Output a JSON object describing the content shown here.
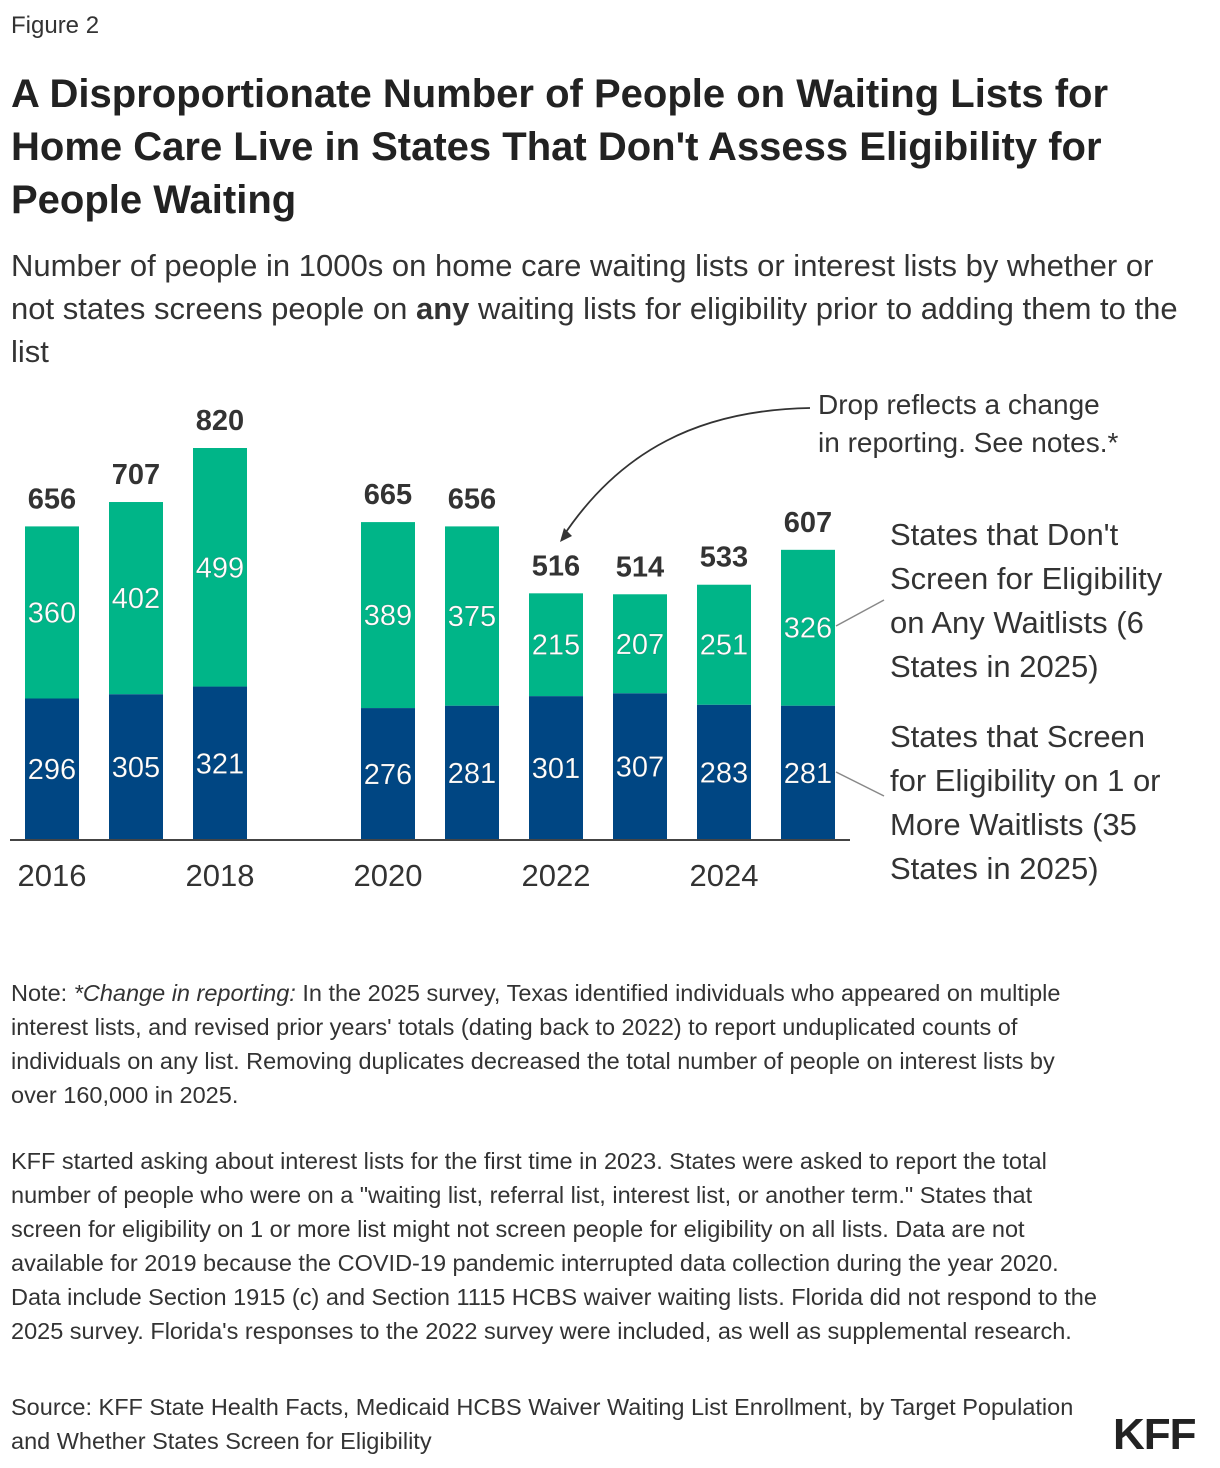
{
  "figure_label": "Figure 2",
  "title": "A Disproportionate Number of People on Waiting Lists for Home Care Live in States That Don't Assess Eligibility for People Waiting",
  "subtitle_pre": "Number of people in 1000s on home care waiting lists or interest lists by whether or not states screens people on ",
  "subtitle_bold": "any",
  "subtitle_post": " waiting lists for eligibility prior to adding them to the list",
  "chart_data": {
    "type": "bar",
    "stacked": true,
    "categories": [
      "2016",
      "2017",
      "2018",
      "2019",
      "2020",
      "2021",
      "2022",
      "2023",
      "2024",
      "2025"
    ],
    "tick_labels": [
      "2016",
      "2018",
      "2020",
      "2022",
      "2024"
    ],
    "series": [
      {
        "name": "States that Screen for Eligibility on 1 or More Waitlists (35 States in 2025)",
        "color": "#004683",
        "values": [
          296,
          305,
          321,
          null,
          276,
          281,
          301,
          307,
          283,
          281
        ]
      },
      {
        "name": "States that Don't Screen for Eligibility on Any Waitlists (6 States in 2025)",
        "color": "#00b588",
        "values": [
          360,
          402,
          499,
          null,
          389,
          375,
          215,
          207,
          251,
          326
        ]
      }
    ],
    "totals": [
      656,
      707,
      820,
      null,
      665,
      656,
      516,
      514,
      533,
      607
    ],
    "ylim": [
      0,
      820
    ],
    "grid": false,
    "legend_placement": "right",
    "annotation": {
      "text": "Drop reflects a change in reporting. See notes.*",
      "target": "2022"
    }
  },
  "notes": {
    "note_label": "Note: ",
    "note_italic": "*Change in reporting:",
    "note_text": " In the 2025 survey, Texas identified individuals who appeared on multiple interest lists, and revised prior years' totals (dating back to 2022) to report unduplicated counts of individuals on any list. Removing duplicates decreased the total number of people on interest lists by over 160,000 in 2025.",
    "note2": "KFF started asking about interest lists for the first time in 2023. States were asked to report the total number of people who were on a \"waiting list, referral list, interest list, or another term.\" States that screen for eligibility on 1 or more list might not screen people for eligibility on all lists. Data are not available for 2019 because the COVID-19 pandemic interrupted data collection during the year 2020. Data include Section 1915 (c) and Section 1115 HCBS waiver waiting lists. Florida did not respond to the 2025 survey. Florida's responses to the 2022 survey were included, as well as supplemental research.",
    "source": "Source: KFF State Health Facts, Medicaid HCBS Waiver Waiting List Enrollment, by Target Population and Whether States Screen for Eligibility"
  },
  "logo": "KFF"
}
